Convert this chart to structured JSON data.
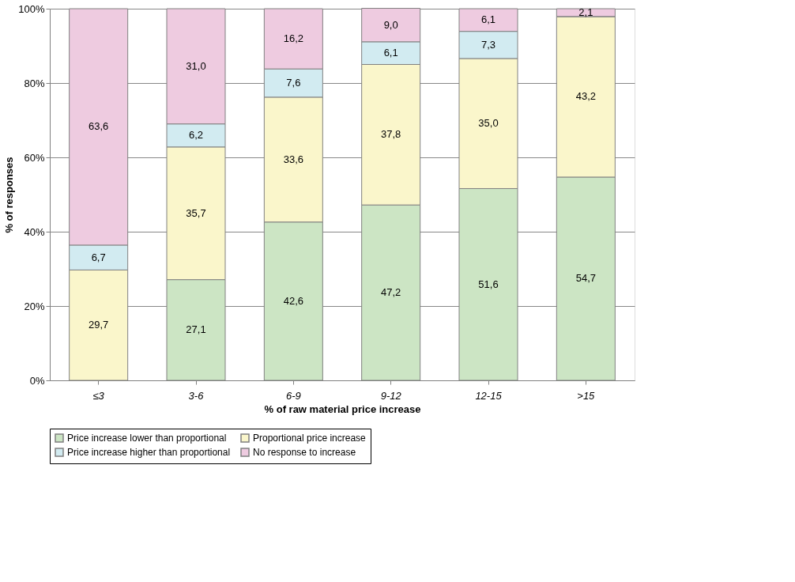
{
  "chart_data": {
    "type": "bar",
    "stacked": true,
    "xlabel": "% of raw material  price increase",
    "ylabel": "% of responses",
    "categories": [
      "≤3",
      "3-6",
      "6-9",
      "9-12",
      "12-15",
      ">15"
    ],
    "series": [
      {
        "name": "Price increase lower than proportional",
        "color": "#cce5c4",
        "values": [
          0,
          27.1,
          42.6,
          47.2,
          51.6,
          54.7
        ],
        "value_labels": [
          null,
          "27,1",
          "42,6",
          "47,2",
          "51,6",
          "54,7"
        ]
      },
      {
        "name": "Proportional price increase",
        "color": "#faf6cb",
        "values": [
          29.7,
          35.7,
          33.6,
          37.8,
          35.0,
          43.2
        ],
        "value_labels": [
          "29,7",
          "35,7",
          "33,6",
          "37,8",
          "35,0",
          "43,2"
        ]
      },
      {
        "name": "Price increase higher than proportional",
        "color": "#d2ebf1",
        "values": [
          6.7,
          6.2,
          7.6,
          6.1,
          7.3,
          0
        ],
        "value_labels": [
          "6,7",
          "6,2",
          "7,6",
          "6,1",
          "7,3",
          null
        ]
      },
      {
        "name": "No response to increase",
        "color": "#eecbe0",
        "values": [
          63.6,
          31.0,
          16.2,
          9.0,
          6.1,
          2.1
        ],
        "value_labels": [
          "63,6",
          "31,0",
          "16,2",
          "9,0",
          "6,1",
          "2,1"
        ]
      }
    ],
    "ylim": [
      0,
      100
    ],
    "yticks": [
      {
        "value": 0,
        "label": "0%"
      },
      {
        "value": 20,
        "label": "20%"
      },
      {
        "value": 40,
        "label": "40%"
      },
      {
        "value": 60,
        "label": "60%"
      },
      {
        "value": 80,
        "label": "80%"
      },
      {
        "value": 100,
        "label": "100%"
      }
    ],
    "grid": "y",
    "legend": "bottom"
  }
}
